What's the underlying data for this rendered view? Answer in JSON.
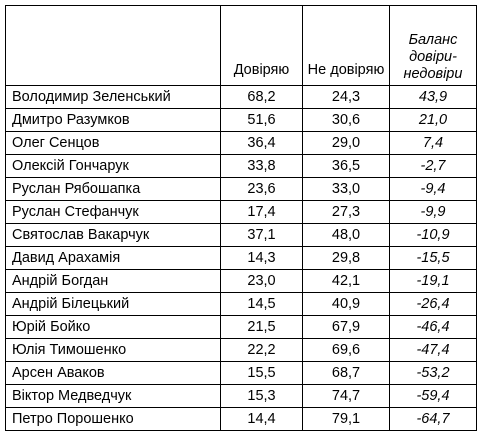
{
  "headers": {
    "name": "",
    "trust": "Довіряю",
    "distrust": "Не довіряю",
    "balance": "Баланс довіри-недовіри"
  },
  "rows": [
    {
      "name": "Володимир Зеленський",
      "trust": "68,2",
      "distrust": "24,3",
      "balance": "43,9"
    },
    {
      "name": "Дмитро Разумков",
      "trust": "51,6",
      "distrust": "30,6",
      "balance": "21,0"
    },
    {
      "name": "Олег Сенцов",
      "trust": "36,4",
      "distrust": "29,0",
      "balance": "7,4"
    },
    {
      "name": "Олексій Гончарук",
      "trust": "33,8",
      "distrust": "36,5",
      "balance": "-2,7"
    },
    {
      "name": "Руслан Рябошапка",
      "trust": "23,6",
      "distrust": "33,0",
      "balance": "-9,4"
    },
    {
      "name": "Руслан Стефанчук",
      "trust": "17,4",
      "distrust": "27,3",
      "balance": "-9,9"
    },
    {
      "name": "Святослав Вакарчук",
      "trust": "37,1",
      "distrust": "48,0",
      "balance": "-10,9"
    },
    {
      "name": "Давид Арахамія",
      "trust": "14,3",
      "distrust": "29,8",
      "balance": "-15,5"
    },
    {
      "name": "Андрій Богдан",
      "trust": "23,0",
      "distrust": "42,1",
      "balance": "-19,1"
    },
    {
      "name": "Андрій Білецький",
      "trust": "14,5",
      "distrust": "40,9",
      "balance": "-26,4"
    },
    {
      "name": "Юрій Бойко",
      "trust": "21,5",
      "distrust": "67,9",
      "balance": "-46,4"
    },
    {
      "name": "Юлія Тимошенко",
      "trust": "22,2",
      "distrust": "69,6",
      "balance": "-47,4"
    },
    {
      "name": "Арсен Аваков",
      "trust": "15,5",
      "distrust": "68,7",
      "balance": "-53,2"
    },
    {
      "name": "Віктор Медведчук",
      "trust": "15,3",
      "distrust": "74,7",
      "balance": "-59,4"
    },
    {
      "name": "Петро Порошенко",
      "trust": "14,4",
      "distrust": "79,1",
      "balance": "-64,7"
    }
  ]
}
